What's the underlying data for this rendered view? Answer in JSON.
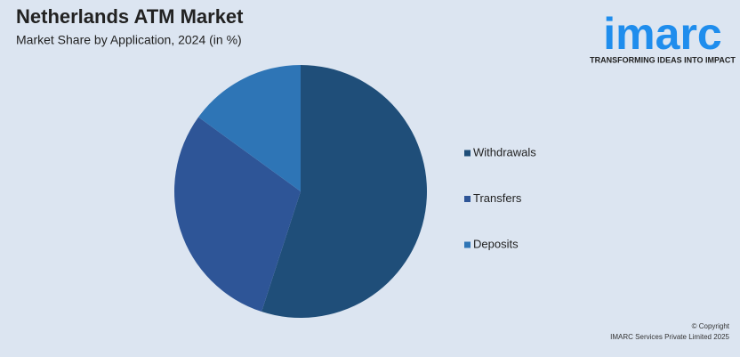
{
  "chart_data": {
    "type": "pie",
    "title": "Netherlands ATM Market",
    "subtitle": "Market Share by Application, 2024 (in %)",
    "categories": [
      "Withdrawals",
      "Transfers",
      "Deposits"
    ],
    "values": [
      55,
      30,
      15
    ],
    "colors": [
      "#1f4e79",
      "#2e5597",
      "#2e75b6"
    ],
    "legend": "right"
  },
  "logo": {
    "name": "imarc",
    "tagline": "TRANSFORMING IDEAS INTO IMPACT"
  },
  "footer": {
    "copyright": "© Copyright",
    "company": "IMARC Services Private Limited 2025"
  }
}
